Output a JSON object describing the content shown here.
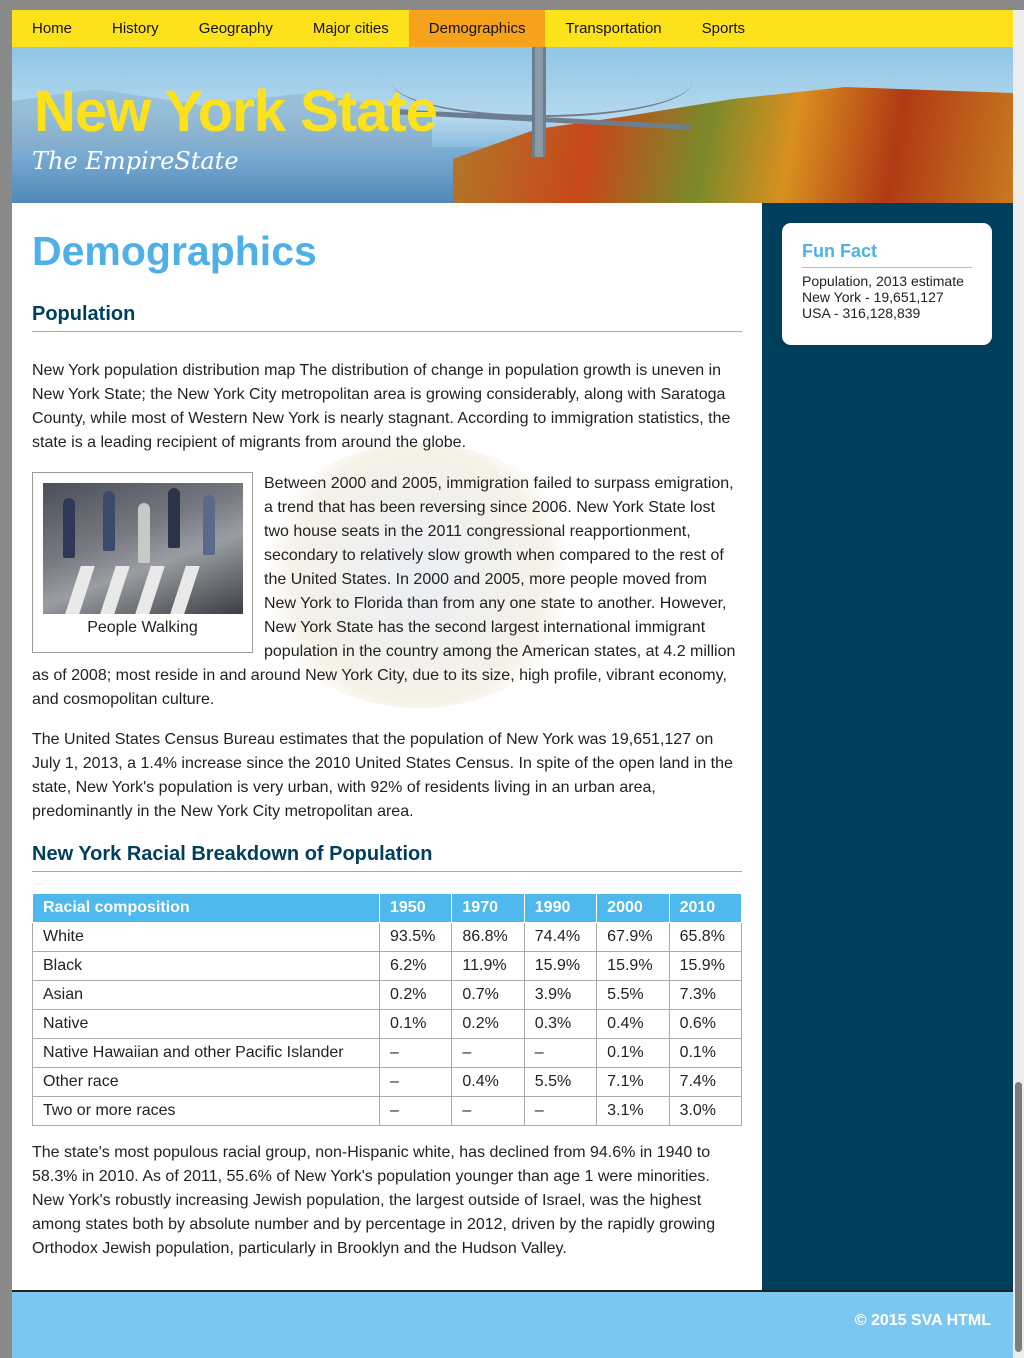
{
  "nav": {
    "items": [
      "Home",
      "History",
      "Geography",
      "Major cities",
      "Demographics",
      "Transportation",
      "Sports"
    ],
    "active": "Demographics"
  },
  "banner": {
    "title": "New York State",
    "tagline": "The EmpireState"
  },
  "main": {
    "page_title": "Demographics",
    "population_heading": "Population",
    "para1": "New York population distribution map The distribution of change in population growth is uneven in New York State; the New York City metropolitan area is growing considerably, along with Saratoga County, while most of Western New York is nearly stagnant. According to immigration statistics, the state is a leading recipient of migrants from around the globe.",
    "figure_caption": "People Walking",
    "para2_float": "Between 2000 and 2005, immigration failed to surpass emigration, a trend that has been reversing since 2006. New York State lost two house seats in the 2011 congressional reapportionment, secondary to relatively slow growth when compared to the rest of the United States. In 2000 and 2005, more people moved from New York to Florida than from any one state to another. However, New York State has the second largest international immigrant population in the country among the American states, at 4.2 million",
    "para2_tail": "as of 2008; most reside in and around New York City, due to its size, high profile, vibrant economy, and cosmopolitan culture.",
    "para3": "The United States Census Bureau estimates that the population of New York was 19,651,127 on July 1, 2013, a 1.4% increase since the 2010 United States Census. In spite of the open land in the state, New York's population is very urban, with 92% of residents living in an urban area, predominantly in the New York City metropolitan area.",
    "table_heading": "New York Racial Breakdown of Population",
    "table": {
      "headers": [
        "Racial composition",
        "1950",
        "1970",
        "1990",
        "2000",
        "2010"
      ],
      "rows": [
        [
          "White",
          "93.5%",
          "86.8%",
          "74.4%",
          "67.9%",
          "65.8%"
        ],
        [
          "Black",
          "6.2%",
          "11.9%",
          "15.9%",
          "15.9%",
          "15.9%"
        ],
        [
          "Asian",
          "0.2%",
          "0.7%",
          "3.9%",
          "5.5%",
          "7.3%"
        ],
        [
          "Native",
          "0.1%",
          "0.2%",
          "0.3%",
          "0.4%",
          "0.6%"
        ],
        [
          "Native Hawaiian and other Pacific Islander",
          "–",
          "–",
          "–",
          "0.1%",
          "0.1%"
        ],
        [
          "Other race",
          "–",
          "0.4%",
          "5.5%",
          "7.1%",
          "7.4%"
        ],
        [
          "Two or more races",
          "–",
          "–",
          "–",
          "3.1%",
          "3.0%"
        ]
      ]
    },
    "para4": "The state's most populous racial group, non-Hispanic white, has declined from 94.6% in 1940 to 58.3% in 2010. As of 2011, 55.6% of New York's population younger than age 1 were minorities. New York's robustly increasing Jewish population, the largest outside of Israel, was the highest among states both by absolute number and by percentage in 2012, driven by the rapidly growing Orthodox Jewish population, particularly in Brooklyn and the Hudson Valley."
  },
  "sidebar": {
    "fun_fact_title": "Fun Fact",
    "fun_fact_line1": "Population, 2013 estimate",
    "fun_fact_line2": "New York - 19,651,127",
    "fun_fact_line3": "USA - 316,128,839"
  },
  "footer": {
    "copyright": "© 2015 SVA HTML"
  },
  "colors": {
    "nav_bg": "#fde21b",
    "nav_active": "#f7a21b",
    "accent_blue": "#4fb0e8",
    "sidebar_bg": "#003f5c",
    "footer_bg": "#7cc7f1"
  }
}
